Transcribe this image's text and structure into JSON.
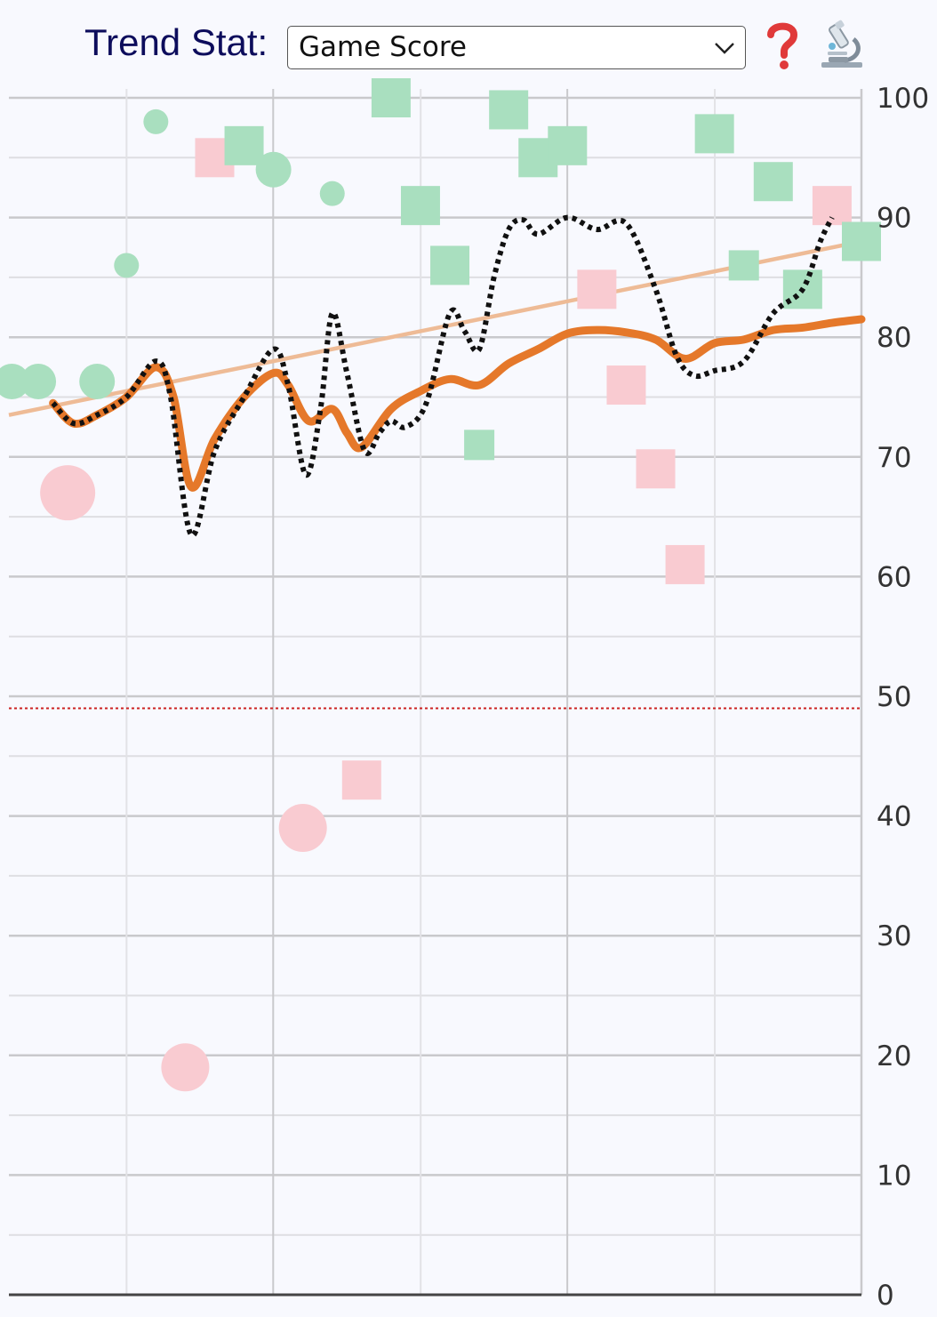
{
  "header": {
    "label": "Trend Stat:",
    "selected_stat": "Game Score"
  },
  "icons": {
    "help": "question-mark-icon",
    "analysis": "microscope-icon"
  },
  "colors": {
    "win": "#a9dfbf",
    "loss": "#f9cbd1",
    "rolling_average": "#e5782a",
    "trend_line": "#eebb96",
    "smoothed": "#111111",
    "threshold": "#cc2222",
    "label": "#0d0d5c"
  },
  "chart_data": {
    "type": "scatter",
    "title": "",
    "xlabel": "",
    "ylabel": "",
    "ylim": [
      0,
      100
    ],
    "yticks": [
      "0",
      "10",
      "20",
      "30",
      "40",
      "50",
      "60",
      "70",
      "80",
      "90",
      "100"
    ],
    "y_axis_position": "right",
    "grid": true,
    "reference_line": 49,
    "xlim": [
      0,
      29
    ],
    "points": [
      {
        "x": 0.1,
        "y": 76.3,
        "shape": "circle",
        "result": "win",
        "size": 2
      },
      {
        "x": 1.0,
        "y": 76.3,
        "shape": "circle",
        "result": "win",
        "size": 2
      },
      {
        "x": 2.0,
        "y": 67.0,
        "shape": "circle",
        "result": "loss",
        "size": 5
      },
      {
        "x": 3.0,
        "y": 76.3,
        "shape": "circle",
        "result": "win",
        "size": 2
      },
      {
        "x": 4.0,
        "y": 86.0,
        "shape": "circle",
        "result": "win",
        "size": 1
      },
      {
        "x": 5.0,
        "y": 98.0,
        "shape": "circle",
        "result": "win",
        "size": 1
      },
      {
        "x": 6.0,
        "y": 19.0,
        "shape": "circle",
        "result": "loss",
        "size": 3
      },
      {
        "x": 7.0,
        "y": 95.0,
        "shape": "square",
        "result": "loss",
        "size": 2
      },
      {
        "x": 8.0,
        "y": 96.0,
        "shape": "square",
        "result": "win",
        "size": 2
      },
      {
        "x": 9.0,
        "y": 94.0,
        "shape": "circle",
        "result": "win",
        "size": 2
      },
      {
        "x": 10.0,
        "y": 39.0,
        "shape": "circle",
        "result": "loss",
        "size": 3
      },
      {
        "x": 11.0,
        "y": 92.0,
        "shape": "circle",
        "result": "win",
        "size": 1
      },
      {
        "x": 12.0,
        "y": 43.0,
        "shape": "square",
        "result": "loss",
        "size": 2
      },
      {
        "x": 13.0,
        "y": 100.0,
        "shape": "square",
        "result": "win",
        "size": 2
      },
      {
        "x": 14.0,
        "y": 91.0,
        "shape": "square",
        "result": "win",
        "size": 2
      },
      {
        "x": 15.0,
        "y": 86.0,
        "shape": "square",
        "result": "win",
        "size": 2
      },
      {
        "x": 16.0,
        "y": 71.0,
        "shape": "square",
        "result": "win",
        "size": 1
      },
      {
        "x": 17.0,
        "y": 99.0,
        "shape": "square",
        "result": "win",
        "size": 2
      },
      {
        "x": 18.0,
        "y": 95.0,
        "shape": "square",
        "result": "win",
        "size": 2
      },
      {
        "x": 19.0,
        "y": 96.0,
        "shape": "square",
        "result": "win",
        "size": 2
      },
      {
        "x": 20.0,
        "y": 84.0,
        "shape": "square",
        "result": "loss",
        "size": 2
      },
      {
        "x": 21.0,
        "y": 76.0,
        "shape": "square",
        "result": "loss",
        "size": 2
      },
      {
        "x": 22.0,
        "y": 69.0,
        "shape": "square",
        "result": "loss",
        "size": 2
      },
      {
        "x": 23.0,
        "y": 61.0,
        "shape": "square",
        "result": "loss",
        "size": 2
      },
      {
        "x": 24.0,
        "y": 97.0,
        "shape": "square",
        "result": "win",
        "size": 2
      },
      {
        "x": 25.0,
        "y": 86.0,
        "shape": "square",
        "result": "win",
        "size": 1
      },
      {
        "x": 26.0,
        "y": 93.0,
        "shape": "square",
        "result": "win",
        "size": 2
      },
      {
        "x": 27.0,
        "y": 84.0,
        "shape": "square",
        "result": "win",
        "size": 2
      },
      {
        "x": 28.0,
        "y": 91.0,
        "shape": "square",
        "result": "loss",
        "size": 2
      },
      {
        "x": 29.0,
        "y": 88.0,
        "shape": "square",
        "result": "win",
        "size": 2
      }
    ],
    "trend_line": [
      {
        "x": 0,
        "y": 73.5
      },
      {
        "x": 29,
        "y": 88.0
      }
    ],
    "rolling_average": [
      {
        "x": 1.5,
        "y": 74.5
      },
      {
        "x": 2.2,
        "y": 72.8
      },
      {
        "x": 3.0,
        "y": 73.5
      },
      {
        "x": 4.0,
        "y": 75.0
      },
      {
        "x": 5.0,
        "y": 77.5
      },
      {
        "x": 5.6,
        "y": 75.0
      },
      {
        "x": 6.2,
        "y": 67.5
      },
      {
        "x": 7.0,
        "y": 71.5
      },
      {
        "x": 8.0,
        "y": 75.0
      },
      {
        "x": 9.0,
        "y": 77.0
      },
      {
        "x": 9.5,
        "y": 76.0
      },
      {
        "x": 10.2,
        "y": 73.0
      },
      {
        "x": 11.0,
        "y": 74.0
      },
      {
        "x": 11.5,
        "y": 72.0
      },
      {
        "x": 12.0,
        "y": 70.8
      },
      {
        "x": 13.0,
        "y": 74.0
      },
      {
        "x": 14.0,
        "y": 75.5
      },
      {
        "x": 15.0,
        "y": 76.5
      },
      {
        "x": 16.0,
        "y": 76.0
      },
      {
        "x": 17.0,
        "y": 77.8
      },
      {
        "x": 18.0,
        "y": 79.0
      },
      {
        "x": 19.0,
        "y": 80.3
      },
      {
        "x": 20.0,
        "y": 80.6
      },
      {
        "x": 21.0,
        "y": 80.4
      },
      {
        "x": 22.0,
        "y": 79.8
      },
      {
        "x": 23.0,
        "y": 78.2
      },
      {
        "x": 24.0,
        "y": 79.5
      },
      {
        "x": 25.0,
        "y": 79.8
      },
      {
        "x": 26.0,
        "y": 80.6
      },
      {
        "x": 27.0,
        "y": 80.8
      },
      {
        "x": 28.0,
        "y": 81.2
      },
      {
        "x": 29.0,
        "y": 81.5
      }
    ],
    "smoothed": [
      {
        "x": 1.5,
        "y": 74.5
      },
      {
        "x": 2.2,
        "y": 72.8
      },
      {
        "x": 3.0,
        "y": 73.5
      },
      {
        "x": 4.0,
        "y": 75.0
      },
      {
        "x": 5.0,
        "y": 78.0
      },
      {
        "x": 5.5,
        "y": 75.0
      },
      {
        "x": 6.2,
        "y": 63.5
      },
      {
        "x": 7.0,
        "y": 70.5
      },
      {
        "x": 8.0,
        "y": 75.0
      },
      {
        "x": 9.0,
        "y": 79.0
      },
      {
        "x": 9.5,
        "y": 76.0
      },
      {
        "x": 10.1,
        "y": 68.5
      },
      {
        "x": 10.6,
        "y": 74.0
      },
      {
        "x": 11.0,
        "y": 82.0
      },
      {
        "x": 11.5,
        "y": 77.0
      },
      {
        "x": 12.1,
        "y": 70.5
      },
      {
        "x": 12.6,
        "y": 72.0
      },
      {
        "x": 13.0,
        "y": 73.0
      },
      {
        "x": 13.5,
        "y": 72.5
      },
      {
        "x": 14.2,
        "y": 74.5
      },
      {
        "x": 15.0,
        "y": 82.0
      },
      {
        "x": 15.5,
        "y": 80.5
      },
      {
        "x": 16.0,
        "y": 79.0
      },
      {
        "x": 16.5,
        "y": 85.0
      },
      {
        "x": 17.0,
        "y": 89.0
      },
      {
        "x": 17.5,
        "y": 89.8
      },
      {
        "x": 18.0,
        "y": 88.6
      },
      {
        "x": 19.0,
        "y": 90.0
      },
      {
        "x": 20.0,
        "y": 89.0
      },
      {
        "x": 21.0,
        "y": 89.5
      },
      {
        "x": 22.0,
        "y": 84.0
      },
      {
        "x": 22.7,
        "y": 78.5
      },
      {
        "x": 23.3,
        "y": 76.8
      },
      {
        "x": 24.0,
        "y": 77.2
      },
      {
        "x": 25.0,
        "y": 78.0
      },
      {
        "x": 26.0,
        "y": 82.0
      },
      {
        "x": 27.0,
        "y": 84.0
      },
      {
        "x": 27.6,
        "y": 88.0
      },
      {
        "x": 28.0,
        "y": 90.0
      }
    ]
  }
}
